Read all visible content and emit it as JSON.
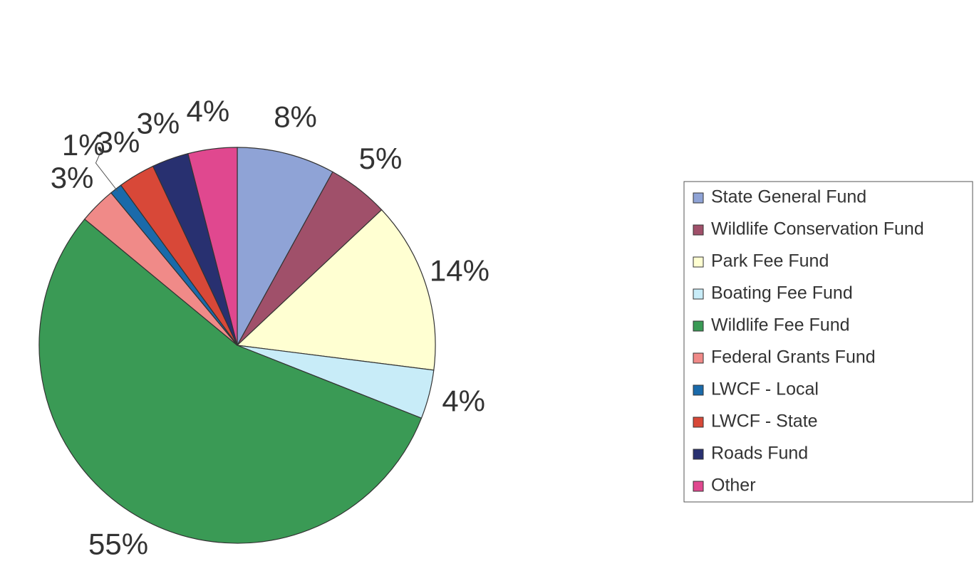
{
  "chart_data": {
    "type": "pie",
    "categories": [
      "State General Fund",
      "Wildlife Conservation Fund",
      "Park Fee Fund",
      "Boating Fee Fund",
      "Wildlife Fee Fund",
      "Federal Grants Fund",
      "LWCF - Local",
      "LWCF - State",
      "Roads Fund",
      "Other"
    ],
    "values": [
      8,
      5,
      14,
      4,
      55,
      3,
      1,
      3,
      3,
      4
    ],
    "value_labels": [
      "8%",
      "5%",
      "14%",
      "4%",
      "55%",
      "3%",
      "1%",
      "3%",
      "3%",
      "4%"
    ],
    "colors": [
      "#8fa3d6",
      "#a0506a",
      "#ffffd2",
      "#c8ecf8",
      "#3a9a55",
      "#f08a88",
      "#1a6aaa",
      "#d84838",
      "#283070",
      "#e0488f"
    ],
    "legend": "right"
  }
}
